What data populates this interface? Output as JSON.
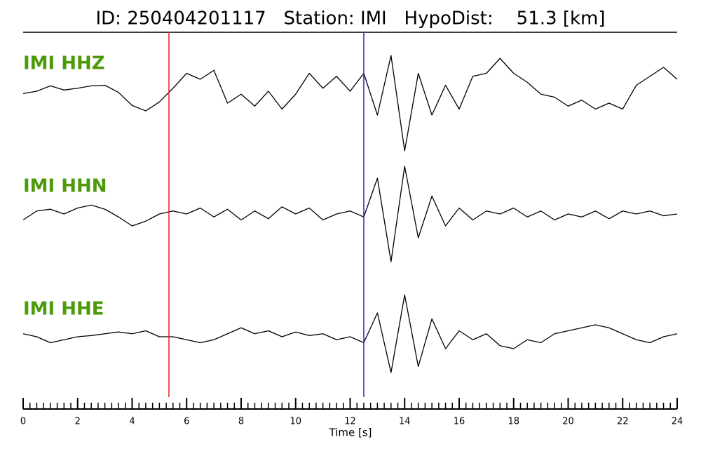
{
  "chart_data": {
    "type": "line",
    "title": "ID: 250404201117   Station: IMI   HypoDist:    51.3 [km]",
    "x_label": "Time [s]",
    "xlim": [
      0,
      24
    ],
    "xticks": [
      0,
      2,
      4,
      6,
      8,
      10,
      12,
      14,
      16,
      18,
      20,
      22,
      24
    ],
    "xminor_step": 0.25,
    "ylim": [
      -1,
      1
    ],
    "x": [
      0,
      0.5,
      1,
      1.5,
      2,
      2.5,
      3,
      3.5,
      4,
      4.5,
      5,
      5.5,
      6,
      6.5,
      7,
      7.5,
      8,
      8.5,
      9,
      9.5,
      10,
      10.5,
      11,
      11.5,
      12,
      12.5,
      13,
      13.5,
      14,
      14.5,
      15,
      15.5,
      16,
      16.5,
      17,
      17.5,
      18,
      18.5,
      19,
      19.5,
      20,
      20.5,
      21,
      21.5,
      22,
      22.5,
      23,
      23.5,
      24
    ],
    "label_color": "#4c9a0a",
    "markers": [
      {
        "x": 5.35,
        "color": "#e8201e"
      },
      {
        "x": 12.5,
        "color": "#1f2fd8"
      }
    ],
    "series": [
      {
        "name": "IMI HHZ",
        "color": "#000000",
        "values": [
          -0.04,
          0.0,
          0.09,
          0.02,
          0.05,
          0.09,
          0.1,
          -0.02,
          -0.24,
          -0.33,
          -0.18,
          0.05,
          0.3,
          0.2,
          0.35,
          -0.2,
          -0.05,
          -0.25,
          0.0,
          -0.3,
          -0.05,
          0.3,
          0.05,
          0.25,
          0.0,
          0.3,
          -0.4,
          0.6,
          -1.0,
          0.3,
          -0.4,
          0.1,
          -0.3,
          0.25,
          0.3,
          0.55,
          0.3,
          0.15,
          -0.05,
          -0.1,
          -0.25,
          -0.15,
          -0.3,
          -0.2,
          -0.3,
          0.1,
          0.25,
          0.4,
          0.2
        ]
      },
      {
        "name": "IMI HHN",
        "color": "#000000",
        "values": [
          -0.1,
          0.05,
          0.08,
          0.0,
          0.1,
          0.15,
          0.08,
          -0.05,
          -0.2,
          -0.12,
          0.0,
          0.05,
          0.0,
          0.1,
          -0.05,
          0.08,
          -0.1,
          0.05,
          -0.08,
          0.12,
          0.0,
          0.1,
          -0.1,
          0.0,
          0.05,
          -0.05,
          0.6,
          -0.8,
          0.8,
          -0.4,
          0.3,
          -0.2,
          0.1,
          -0.1,
          0.05,
          0.0,
          0.1,
          -0.05,
          0.05,
          -0.1,
          0.0,
          -0.05,
          0.05,
          -0.08,
          0.05,
          0.0,
          0.05,
          -0.03,
          0.0
        ]
      },
      {
        "name": "IMI HHE",
        "color": "#000000",
        "values": [
          0.05,
          0.0,
          -0.1,
          -0.05,
          0.0,
          0.02,
          0.05,
          0.08,
          0.05,
          0.1,
          0.0,
          0.0,
          -0.05,
          -0.1,
          -0.05,
          0.05,
          0.15,
          0.05,
          0.1,
          0.0,
          0.08,
          0.02,
          0.05,
          -0.05,
          0.0,
          -0.1,
          0.4,
          -0.6,
          0.7,
          -0.5,
          0.3,
          -0.2,
          0.1,
          -0.05,
          0.05,
          -0.15,
          -0.2,
          -0.05,
          -0.1,
          0.05,
          0.1,
          0.15,
          0.2,
          0.15,
          0.05,
          -0.05,
          -0.1,
          0.0,
          0.05
        ]
      }
    ]
  }
}
